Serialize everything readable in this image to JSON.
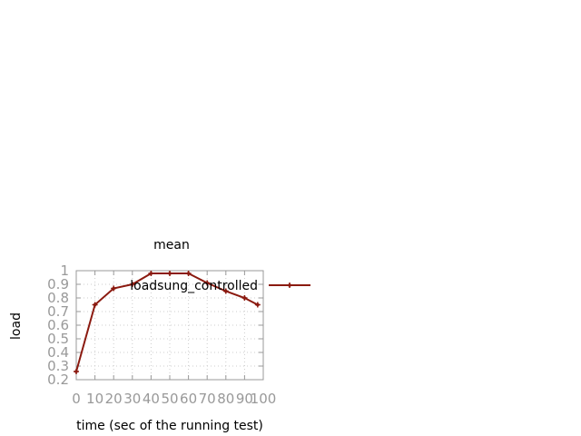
{
  "chart_data": {
    "type": "line",
    "title": "mean",
    "xlabel": "time (sec of the running test)",
    "ylabel": "load",
    "xlim": [
      0,
      100
    ],
    "ylim": [
      0.2,
      1
    ],
    "x_ticks": [
      0,
      10,
      20,
      30,
      40,
      50,
      60,
      70,
      80,
      90,
      100
    ],
    "y_ticks": [
      0.2,
      0.3,
      0.4,
      0.5,
      0.6,
      0.7,
      0.8,
      0.9,
      1
    ],
    "x_tick_labels": [
      "0",
      "10",
      "20",
      "30",
      "40",
      "50",
      "60",
      "70",
      "80",
      "90",
      "100"
    ],
    "y_tick_labels": [
      "0.2",
      "0.3",
      "0.4",
      "0.5",
      "0.6",
      "0.7",
      "0.8",
      "0.9",
      "1"
    ],
    "grid": true,
    "legend_position": "top-right",
    "series": [
      {
        "name": "loadsung_controlled",
        "color": "#8b1a10",
        "x": [
          0,
          10,
          20,
          30,
          40,
          50,
          60,
          70,
          80,
          90,
          97
        ],
        "y": [
          0.26,
          0.75,
          0.87,
          0.9,
          0.98,
          0.98,
          0.98,
          0.91,
          0.85,
          0.8,
          0.75
        ]
      }
    ]
  }
}
